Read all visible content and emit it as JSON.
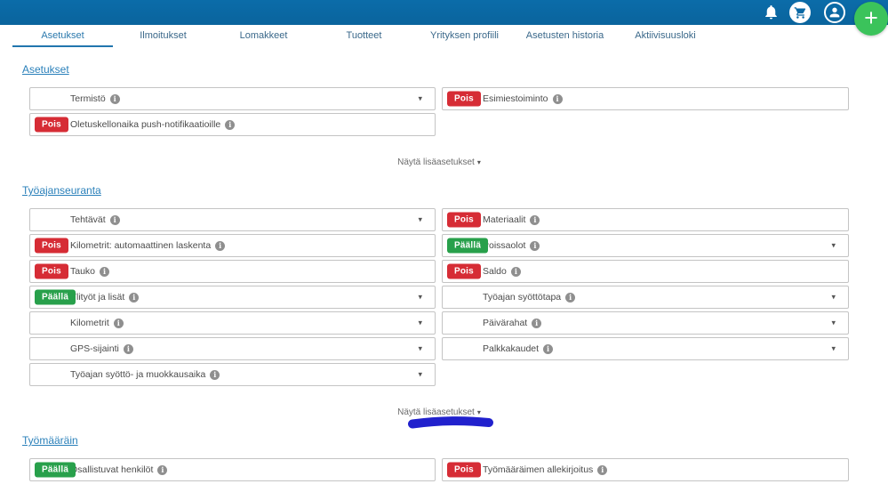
{
  "header": {
    "icons": [
      "bell-icon",
      "cart-icon",
      "user-icon",
      "plus-icon"
    ],
    "add_button_label": "+"
  },
  "tabs": [
    {
      "label": "Asetukset",
      "active": true
    },
    {
      "label": "Ilmoitukset",
      "active": false
    },
    {
      "label": "Lomakkeet",
      "active": false
    },
    {
      "label": "Tuotteet",
      "active": false
    },
    {
      "label": "Yrityksen profiili",
      "active": false
    },
    {
      "label": "Asetusten historia",
      "active": false
    },
    {
      "label": "Aktiivisuusloki",
      "active": false
    }
  ],
  "toggle": {
    "on_label": "Päällä",
    "off_label": "Pois"
  },
  "sections": [
    {
      "title": "Asetukset",
      "rows_left": [
        {
          "label": "Termistö",
          "toggle": null,
          "dropdown": true
        },
        {
          "label": "Oletuskellonaika push-notifikaatioille",
          "toggle": "Pois",
          "dropdown": false
        }
      ],
      "rows_right": [
        {
          "label": "Esimiestoiminto",
          "toggle": "Pois",
          "dropdown": false
        }
      ],
      "more_label": "Näytä lisäasetukset",
      "annotation": false
    },
    {
      "title": "Työajanseuranta",
      "rows_left": [
        {
          "label": "Tehtävät",
          "toggle": null,
          "dropdown": true
        },
        {
          "label": "Kilometrit: automaattinen laskenta",
          "toggle": "Pois",
          "dropdown": false
        },
        {
          "label": "Tauko",
          "toggle": "Pois",
          "dropdown": false
        },
        {
          "label": "Ylityöt ja lisät",
          "toggle": "Päällä",
          "dropdown": true
        },
        {
          "label": "Kilometrit",
          "toggle": null,
          "dropdown": true
        },
        {
          "label": "GPS-sijainti",
          "toggle": null,
          "dropdown": true
        },
        {
          "label": "Työajan syöttö- ja muokkausaika",
          "toggle": null,
          "dropdown": true
        }
      ],
      "rows_right": [
        {
          "label": "Materiaalit",
          "toggle": "Pois",
          "dropdown": false
        },
        {
          "label": "Poissaolot",
          "toggle": "Päällä",
          "dropdown": true
        },
        {
          "label": "Saldo",
          "toggle": "Pois",
          "dropdown": false
        },
        {
          "label": "Työajan syöttötapa",
          "toggle": null,
          "dropdown": true
        },
        {
          "label": "Päivärahat",
          "toggle": null,
          "dropdown": true
        },
        {
          "label": "Palkkakaudet",
          "toggle": null,
          "dropdown": true
        }
      ],
      "more_label": "Näytä lisäasetukset",
      "annotation": true
    },
    {
      "title": "Työmääräin",
      "rows_left": [
        {
          "label": "Osallistuvat henkilöt",
          "toggle": "Päällä",
          "dropdown": false
        }
      ],
      "rows_right": [
        {
          "label": "Työmääräimen allekirjoitus",
          "toggle": "Pois",
          "dropdown": false
        }
      ],
      "more_label": null,
      "annotation": false
    }
  ],
  "colors": {
    "header_blue": "#0a69a5",
    "tab_active": "#2176ae",
    "section_link": "#2a80ba",
    "toggle_off_red": "#d62c35",
    "toggle_on_green": "#28a04b",
    "add_button_green": "#3bc35b",
    "annotation_blue": "#2121cd",
    "row_border": "#c4c4c4"
  }
}
